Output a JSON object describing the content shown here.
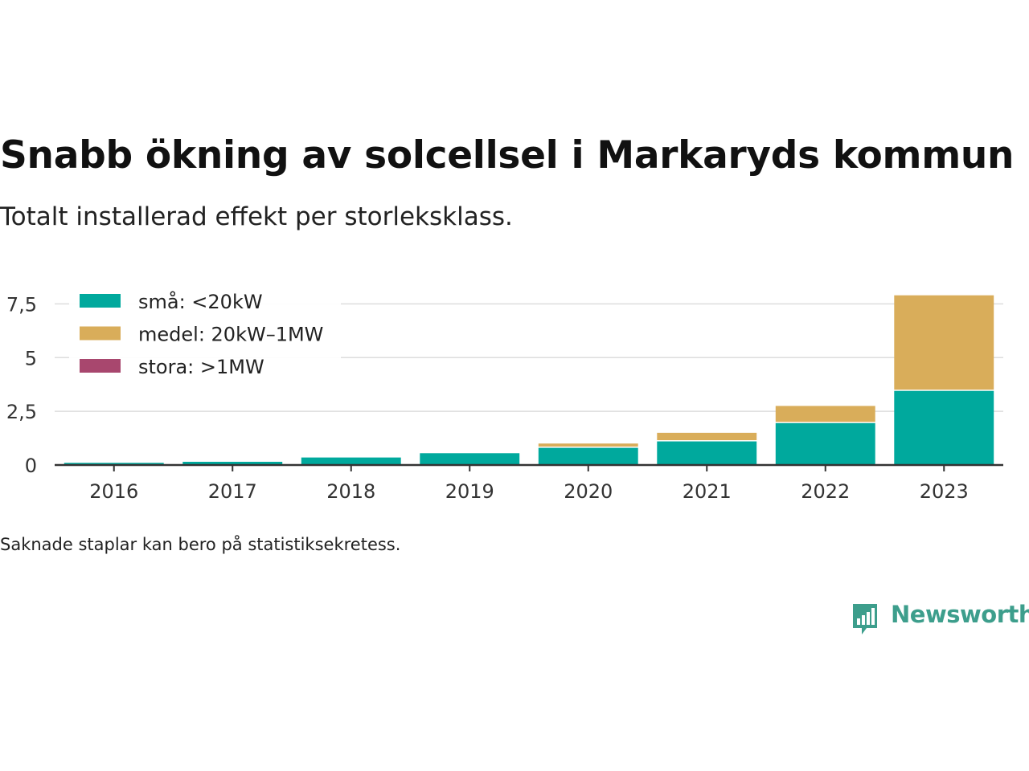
{
  "title": "Snabb ökning av solcellsel i Markaryds kommun",
  "subtitle": "Totalt installerad effekt per storleksklass.",
  "footnote": "Saknade staplar kan bero på statistiksekretess.",
  "logo": {
    "text": "Newsworthy",
    "icon": "newsworthy-logo-icon",
    "color": "#3d9e8c"
  },
  "chart_data": {
    "type": "bar",
    "stacked": true,
    "categories": [
      "2016",
      "2017",
      "2018",
      "2019",
      "2020",
      "2021",
      "2022",
      "2023"
    ],
    "series": [
      {
        "name": "små: <20kW",
        "color": "#00a99d",
        "values": [
          0.1,
          0.15,
          0.35,
          0.55,
          0.8,
          1.1,
          1.95,
          3.45
        ]
      },
      {
        "name": "medel: 20kW–1MW",
        "color": "#d9ad5a",
        "values": [
          0,
          0,
          0,
          0,
          0.2,
          0.4,
          0.8,
          4.45
        ]
      },
      {
        "name": "stora: >1MW",
        "color": "#a8476e",
        "values": [
          0,
          0,
          0,
          0,
          0,
          0,
          0,
          0
        ]
      }
    ],
    "ylim": [
      0,
      8.3
    ],
    "yticks": [
      0,
      2.5,
      5,
      7.5
    ],
    "ytick_labels": [
      "0",
      "2,5",
      "5",
      "7,5"
    ],
    "xlabel": "",
    "ylabel": "",
    "grid": true,
    "legend_position": "top-left"
  }
}
